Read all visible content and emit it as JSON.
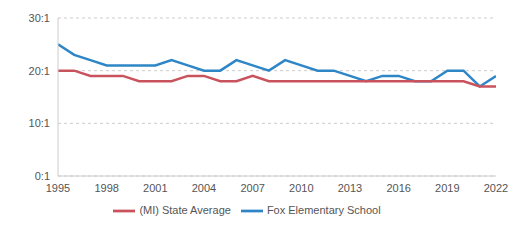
{
  "chart_data": {
    "type": "line",
    "x": [
      1995,
      1996,
      1997,
      1998,
      1999,
      2000,
      2001,
      2002,
      2003,
      2004,
      2005,
      2006,
      2007,
      2008,
      2009,
      2010,
      2011,
      2012,
      2013,
      2014,
      2015,
      2016,
      2017,
      2018,
      2019,
      2020,
      2021,
      2022
    ],
    "series": [
      {
        "name": "Fox Elementary School",
        "color": "#2f86c6",
        "values": [
          25,
          23,
          22,
          21,
          21,
          21,
          21,
          22,
          21,
          20,
          20,
          22,
          21,
          20,
          22,
          21,
          20,
          20,
          19,
          18,
          19,
          19,
          18,
          18,
          20,
          20,
          17,
          19
        ]
      },
      {
        "name": "(MI) State Average",
        "color": "#c9535d",
        "values": [
          20,
          20,
          19,
          19,
          19,
          18,
          18,
          18,
          19,
          19,
          18,
          18,
          19,
          18,
          18,
          18,
          18,
          18,
          18,
          18,
          18,
          18,
          18,
          18,
          18,
          18,
          17,
          17
        ]
      }
    ],
    "xlim": [
      1995,
      2022
    ],
    "xticks": [
      1995,
      1998,
      2001,
      2004,
      2007,
      2010,
      2013,
      2016,
      2019,
      2022
    ],
    "ylim": [
      0,
      30
    ],
    "yticks": [
      {
        "value": 0,
        "label": "0:1"
      },
      {
        "value": 10,
        "label": "10:1"
      },
      {
        "value": 20,
        "label": "20:1"
      },
      {
        "value": 30,
        "label": "30:1"
      }
    ],
    "grid": true,
    "legend": "bottom"
  }
}
